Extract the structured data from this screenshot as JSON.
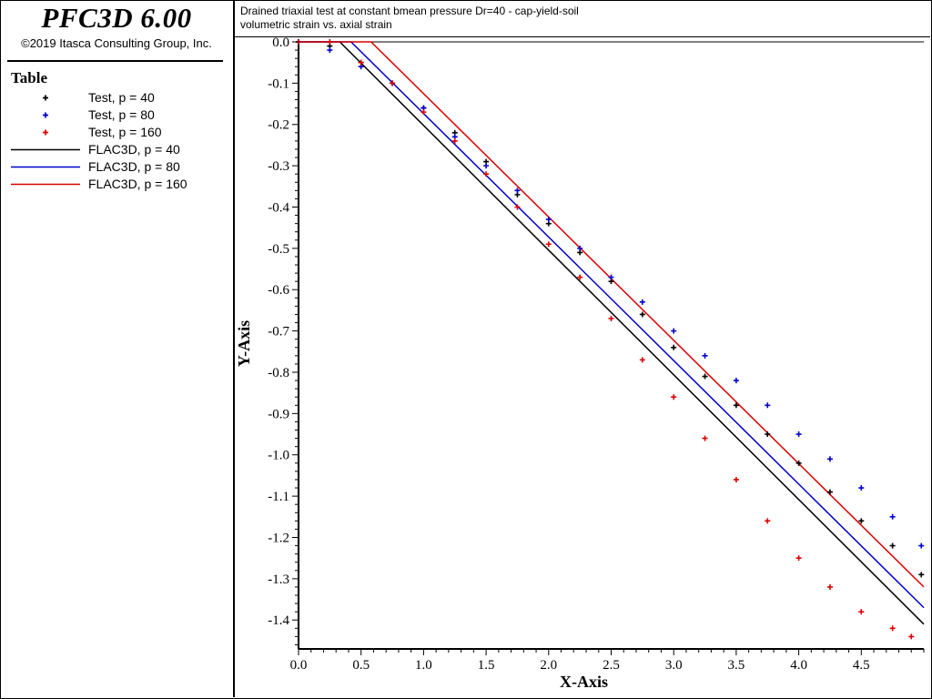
{
  "app": {
    "title": "PFC3D 6.00",
    "copyright": "©2019 Itasca Consulting Group, Inc."
  },
  "legend": {
    "heading": "Table",
    "items": [
      {
        "label": "Test, p = 40",
        "kind": "marker",
        "color": "#000000"
      },
      {
        "label": "Test, p = 80",
        "kind": "marker",
        "color": "#0000cc"
      },
      {
        "label": "Test, p = 160",
        "kind": "marker",
        "color": "#dd0000"
      },
      {
        "label": "FLAC3D, p = 40",
        "kind": "line",
        "color": "#000000"
      },
      {
        "label": "FLAC3D, p = 80",
        "kind": "line",
        "color": "#0000cc"
      },
      {
        "label": "FLAC3D, p = 160",
        "kind": "line",
        "color": "#dd0000"
      }
    ]
  },
  "chart_data": {
    "type": "scatter",
    "title": "Drained triaxial test at constant bmean pressure Dr=40 - cap-yield-soil",
    "subtitle": "volumetric strain vs. axial strain",
    "xlabel": "X-Axis",
    "ylabel": "Y-Axis",
    "xlim": [
      0.0,
      5.0
    ],
    "ylim": [
      -1.47,
      0.0
    ],
    "xticks": [
      0.0,
      0.5,
      1.0,
      1.5,
      2.0,
      2.5,
      3.0,
      3.5,
      4.0,
      4.5
    ],
    "xtick_labels": [
      "0.0",
      "0.5",
      "1.0",
      "1.5",
      "2.0",
      "2.5",
      "3.0",
      "3.5",
      "4.0",
      "4.5"
    ],
    "yticks": [
      0.0,
      -0.1,
      -0.2,
      -0.3,
      -0.4,
      -0.5,
      -0.6,
      -0.7,
      -0.8,
      -0.9,
      -1.0,
      -1.1,
      -1.2,
      -1.3,
      -1.4
    ],
    "ytick_labels": [
      "0.0",
      "-0.1",
      "-0.2",
      "-0.3",
      "-0.4",
      "-0.5",
      "-0.6",
      "-0.7",
      "-0.8",
      "-0.9",
      "-1.0",
      "-1.1",
      "-1.2",
      "-1.3",
      "-1.4"
    ],
    "marker_series": [
      {
        "name": "Test, p = 40",
        "color": "#000000",
        "x": [
          0.0,
          0.25,
          0.5,
          0.75,
          1.0,
          1.25,
          1.5,
          1.75,
          2.0,
          2.25,
          2.5,
          2.75,
          3.0,
          3.25,
          3.5,
          3.75,
          4.0,
          4.25,
          4.5,
          4.75,
          4.98
        ],
        "y": [
          0.0,
          -0.01,
          -0.05,
          -0.1,
          -0.16,
          -0.22,
          -0.29,
          -0.37,
          -0.44,
          -0.51,
          -0.58,
          -0.66,
          -0.74,
          -0.81,
          -0.88,
          -0.95,
          -1.02,
          -1.09,
          -1.16,
          -1.22,
          -1.29
        ]
      },
      {
        "name": "Test, p = 80",
        "color": "#0000cc",
        "x": [
          0.0,
          0.25,
          0.5,
          0.75,
          1.0,
          1.25,
          1.5,
          1.75,
          2.0,
          2.25,
          2.5,
          2.75,
          3.0,
          3.25,
          3.5,
          3.75,
          4.0,
          4.25,
          4.5,
          4.75,
          4.98
        ],
        "y": [
          0.0,
          -0.02,
          -0.06,
          -0.1,
          -0.16,
          -0.23,
          -0.3,
          -0.36,
          -0.43,
          -0.5,
          -0.57,
          -0.63,
          -0.7,
          -0.76,
          -0.82,
          -0.88,
          -0.95,
          -1.01,
          -1.08,
          -1.15,
          -1.22
        ]
      },
      {
        "name": "Test, p = 160",
        "color": "#dd0000",
        "x": [
          0.0,
          0.25,
          0.5,
          0.75,
          1.0,
          1.25,
          1.5,
          1.75,
          2.0,
          2.25,
          2.5,
          2.75,
          3.0,
          3.25,
          3.5,
          3.75,
          4.0,
          4.25,
          4.5,
          4.75,
          4.9
        ],
        "y": [
          0.0,
          0.0,
          -0.05,
          -0.1,
          -0.17,
          -0.24,
          -0.32,
          -0.4,
          -0.49,
          -0.57,
          -0.67,
          -0.77,
          -0.86,
          -0.96,
          -1.06,
          -1.16,
          -1.25,
          -1.32,
          -1.38,
          -1.42,
          -1.44
        ]
      }
    ],
    "line_series": [
      {
        "name": "FLAC3D, p = 40",
        "color": "#000000",
        "x": [
          0.0,
          0.33,
          5.0
        ],
        "y": [
          0.0,
          0.0,
          -1.41
        ]
      },
      {
        "name": "FLAC3D, p = 80",
        "color": "#0000cc",
        "x": [
          0.0,
          0.42,
          5.0
        ],
        "y": [
          0.0,
          0.0,
          -1.37
        ]
      },
      {
        "name": "FLAC3D, p = 160",
        "color": "#dd0000",
        "x": [
          0.0,
          0.58,
          5.0
        ],
        "y": [
          0.0,
          0.0,
          -1.32
        ]
      }
    ]
  }
}
